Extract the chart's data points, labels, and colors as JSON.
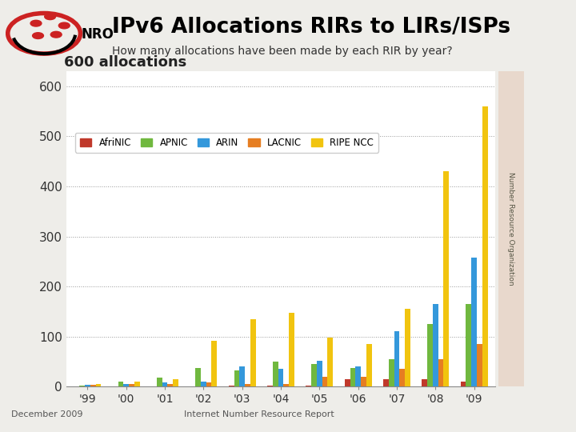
{
  "title": "IPv6 Allocations RIRs to LIRs/ISPs",
  "subtitle": "How many allocations have been made by each RIR by year?",
  "years": [
    "'99",
    "'00",
    "'01",
    "'02",
    "'03",
    "'04",
    "'05",
    "'06",
    "'07",
    "'08",
    "'09"
  ],
  "series": {
    "AfriNIC": {
      "color": "#c0392b",
      "values": [
        0,
        0,
        0,
        0,
        2,
        2,
        2,
        15,
        15,
        15,
        10
      ]
    },
    "APNIC": {
      "color": "#70b83f",
      "values": [
        2,
        10,
        18,
        38,
        32,
        50,
        45,
        38,
        55,
        125,
        165
      ]
    },
    "ARIN": {
      "color": "#3498db",
      "values": [
        3,
        5,
        8,
        10,
        40,
        35,
        52,
        40,
        110,
        165,
        258
      ]
    },
    "LACNIC": {
      "color": "#e67e22",
      "values": [
        3,
        5,
        5,
        8,
        5,
        5,
        20,
        20,
        35,
        55,
        85
      ]
    },
    "RIPE NCC": {
      "color": "#f1c40f",
      "values": [
        5,
        10,
        15,
        92,
        135,
        148,
        98,
        85,
        155,
        430,
        560
      ]
    }
  },
  "ylim": [
    0,
    630
  ],
  "yticks": [
    0,
    100,
    200,
    300,
    400,
    500,
    600
  ],
  "ytick_labels": [
    "0",
    "100",
    "200",
    "300",
    "400",
    "500",
    "600"
  ],
  "bg_color": "#eeede9",
  "plot_bg_color": "#ffffff",
  "footer_left": "December 2009",
  "footer_right": "Internet Number Resource Report",
  "grid_color": "#999999",
  "bar_width": 0.14,
  "legend_fontsize": 8.5,
  "ytick_fontsize": 11,
  "xtick_fontsize": 10,
  "watermark_text": "Number Resource Organization"
}
